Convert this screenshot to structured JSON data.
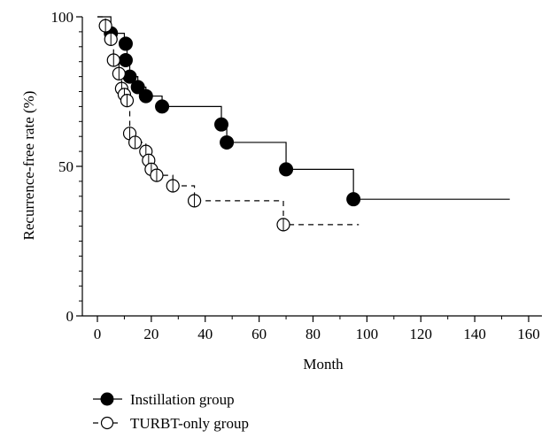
{
  "chart_data": {
    "type": "line",
    "subtype": "kaplan-meier",
    "title": "",
    "xlabel": "Month",
    "ylabel": "Recurrence-free rate (%)",
    "xlim": [
      0,
      160
    ],
    "ylim": [
      0,
      100
    ],
    "x_ticks": [
      "0",
      "20",
      "40",
      "60",
      "80",
      "100",
      "120",
      "140",
      "160"
    ],
    "y_ticks": [
      "0",
      "50",
      "100"
    ],
    "x_tick_values": [
      0,
      20,
      40,
      60,
      80,
      100,
      120,
      140,
      160
    ],
    "y_tick_values": [
      0,
      50,
      100
    ],
    "grid": false,
    "legend_position": "bottom-left",
    "series": [
      {
        "name": "Instillation group",
        "line_style": "solid",
        "marker": "filled-circle",
        "color": "#000000",
        "step_x": [
          0,
          3,
          5,
          6,
          10,
          11,
          12,
          15,
          18,
          24,
          46,
          48,
          70,
          95,
          153
        ],
        "step_y": [
          100,
          100,
          94.5,
          94.5,
          91,
          85.5,
          80,
          76.5,
          73.5,
          70,
          64,
          58,
          49,
          39,
          39
        ],
        "points": [
          {
            "x": 5,
            "y": 94.5
          },
          {
            "x": 10.5,
            "y": 91
          },
          {
            "x": 10.5,
            "y": 85.5
          },
          {
            "x": 12,
            "y": 80
          },
          {
            "x": 15,
            "y": 76.5
          },
          {
            "x": 18,
            "y": 73.5
          },
          {
            "x": 24,
            "y": 70
          },
          {
            "x": 46,
            "y": 64
          },
          {
            "x": 48,
            "y": 58
          },
          {
            "x": 70,
            "y": 49
          },
          {
            "x": 95,
            "y": 39
          }
        ]
      },
      {
        "name": "TURBT-only group",
        "line_style": "dashed",
        "marker": "open-circle",
        "color": "#000000",
        "step_x": [
          0,
          2,
          3,
          5,
          6,
          8,
          9,
          10,
          11,
          12,
          14,
          18,
          19,
          20,
          22,
          28,
          36,
          69,
          97
        ],
        "step_y": [
          100,
          100,
          97,
          92.5,
          85.5,
          81,
          76,
          74,
          72,
          61,
          58,
          55,
          52,
          49,
          47,
          43.5,
          38.5,
          30.5,
          30.5
        ],
        "points": [
          {
            "x": 3,
            "y": 97
          },
          {
            "x": 5,
            "y": 92.5
          },
          {
            "x": 6,
            "y": 85.5
          },
          {
            "x": 8,
            "y": 81
          },
          {
            "x": 9,
            "y": 76
          },
          {
            "x": 10,
            "y": 74
          },
          {
            "x": 11,
            "y": 72
          },
          {
            "x": 12,
            "y": 61
          },
          {
            "x": 14,
            "y": 58
          },
          {
            "x": 18,
            "y": 55
          },
          {
            "x": 19,
            "y": 52
          },
          {
            "x": 20,
            "y": 49
          },
          {
            "x": 22,
            "y": 47
          },
          {
            "x": 28,
            "y": 43.5
          },
          {
            "x": 36,
            "y": 38.5
          },
          {
            "x": 69,
            "y": 30.5
          }
        ]
      }
    ]
  }
}
